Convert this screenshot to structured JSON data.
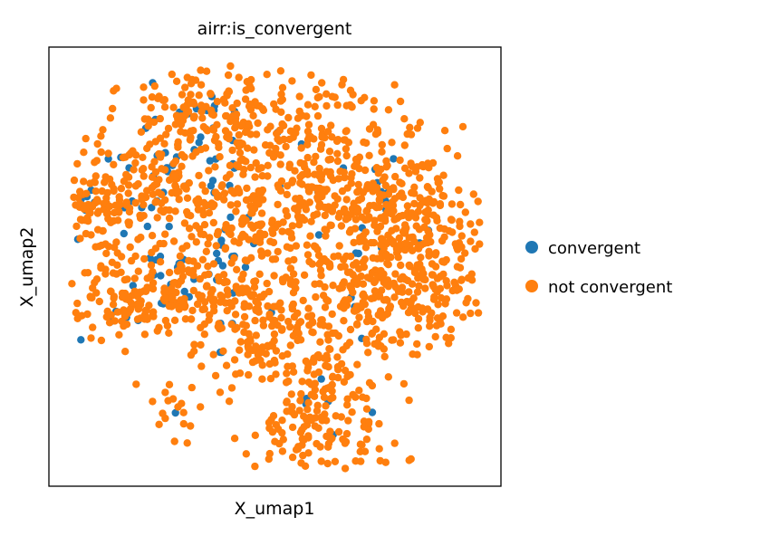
{
  "chart_data": {
    "type": "scatter",
    "title": "airr:is_convergent",
    "xlabel": "X_umap1",
    "ylabel": "X_umap2",
    "xticks": false,
    "yticks": false,
    "grid": false,
    "legend_position": "right",
    "series": [
      {
        "name": "convergent",
        "color": "#1f77b4",
        "approx_point_count": 120
      },
      {
        "name": "not convergent",
        "color": "#ff7f0e",
        "approx_point_count": 1900
      }
    ]
  }
}
